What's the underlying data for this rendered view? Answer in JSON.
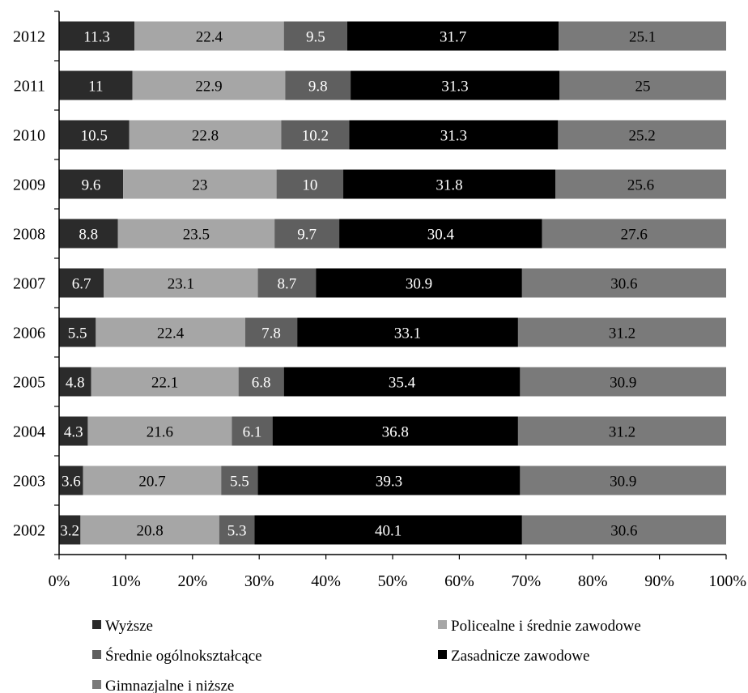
{
  "chart_data": {
    "type": "bar",
    "orientation": "horizontal",
    "stacked": "percent",
    "categories": [
      "2012",
      "2011",
      "2010",
      "2009",
      "2008",
      "2007",
      "2006",
      "2005",
      "2004",
      "2003",
      "2002"
    ],
    "series": [
      {
        "name": "Wyższe",
        "color": "#2b2b2b",
        "label_color": "#ffffff",
        "values": [
          11.3,
          11,
          10.5,
          9.6,
          8.8,
          6.7,
          5.5,
          4.8,
          4.3,
          3.6,
          3.2
        ]
      },
      {
        "name": "Policealne i średnie zawodowe",
        "color": "#a6a6a6",
        "label_color": "#000000",
        "values": [
          22.4,
          22.9,
          22.8,
          23,
          23.5,
          23.1,
          22.4,
          22.1,
          21.6,
          20.7,
          20.8
        ]
      },
      {
        "name": "Średnie ogólnokształcące",
        "color": "#5f5f5f",
        "label_color": "#ffffff",
        "values": [
          9.5,
          9.8,
          10.2,
          10,
          9.7,
          8.7,
          7.8,
          6.8,
          6.1,
          5.5,
          5.3
        ]
      },
      {
        "name": "Zasadnicze zawodowe",
        "color": "#000000",
        "label_color": "#ffffff",
        "values": [
          31.7,
          31.3,
          31.3,
          31.8,
          30.4,
          30.9,
          33.1,
          35.4,
          36.8,
          39.3,
          40.1
        ]
      },
      {
        "name": "Gimnazjalne i niższe",
        "color": "#7a7a7a",
        "label_color": "#000000",
        "values": [
          25.1,
          25,
          25.2,
          25.6,
          27.6,
          30.6,
          31.2,
          30.9,
          31.2,
          30.9,
          30.6
        ]
      }
    ],
    "x_ticks": [
      "0%",
      "10%",
      "20%",
      "30%",
      "40%",
      "50%",
      "60%",
      "70%",
      "80%",
      "90%",
      "100%"
    ],
    "xlim": [
      0,
      100
    ],
    "grid": false,
    "legend_position": "bottom",
    "title": "",
    "xlabel": "",
    "ylabel": ""
  }
}
